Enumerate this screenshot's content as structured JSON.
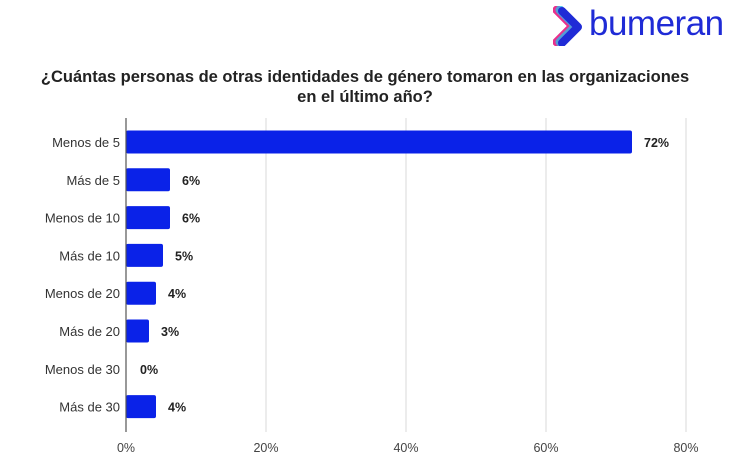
{
  "brand": {
    "name": "bumeran",
    "color": "#1f2bd6",
    "icon": "chevron-logo-icon"
  },
  "chart_data": {
    "type": "bar",
    "orientation": "horizontal",
    "title_line1": "¿Cuántas personas de otras identidades de género tomaron en las organizaciones",
    "title_line2": "en el último año?",
    "categories": [
      "Menos de 5",
      "Más de 5",
      "Menos de 10",
      "Más de 10",
      "Menos de 20",
      "Más de 20",
      "Menos de 30",
      "Más de 30"
    ],
    "values": [
      72,
      6,
      6,
      5,
      4,
      3,
      0,
      4
    ],
    "data_labels": [
      "72%",
      "6%",
      "6%",
      "5%",
      "4%",
      "3%",
      "0%",
      "4%"
    ],
    "xlim": [
      0,
      80
    ],
    "x_ticks": [
      0,
      20,
      40,
      60,
      80
    ],
    "x_tick_labels": [
      "0%",
      "20%",
      "40%",
      "60%",
      "80%"
    ],
    "xlabel": "",
    "ylabel": "",
    "grid": true,
    "bar_color": "#0a22e8"
  }
}
